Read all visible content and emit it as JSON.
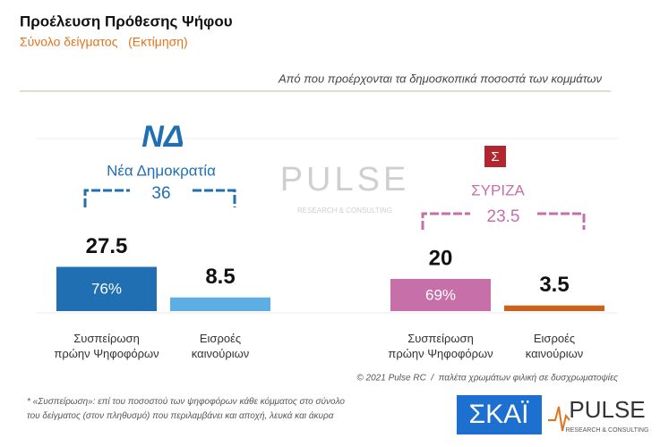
{
  "header": {
    "title": "Προέλευση Πρόθεσης Ψήφου",
    "subtitle": "Σύνολο δείγματος   (Εκτίμηση)",
    "question": "Από που προέρχονται τα δημοσκοπικά ποσοστά των κομμάτων"
  },
  "chart_data": [
    {
      "type": "bar",
      "title": "Νέα Δημοκρατία",
      "logo": "ΝΔ",
      "total": 36,
      "categories": [
        "Συσπείρωση\nπρώην Ψηφοφόρων",
        "Εισροές\nκαινούριων"
      ],
      "values": [
        27.5,
        8.5
      ],
      "colors": [
        "#1f6fb2",
        "#5eaee6"
      ],
      "inner_labels": [
        "76%"
      ],
      "color": "#1f6fb2"
    },
    {
      "type": "bar",
      "title": "ΣΥΡΙΖΑ",
      "logo": "Σ",
      "total": 23.5,
      "categories": [
        "Συσπείρωση\nπρώην Ψηφοφόρων",
        "Εισροές\nκαινούριων"
      ],
      "values": [
        20,
        3.5
      ],
      "colors": [
        "#c76fa8",
        "#c8621c"
      ],
      "inner_labels": [
        "69%"
      ],
      "color": "#c76fa8"
    }
  ],
  "watermark": {
    "name": "PULSE",
    "tagline": "RESEARCH & CONSULTING"
  },
  "footer": {
    "copyright": "© 2021 Pulse RC  /  παλέτα χρωμάτων φιλική σε δυσχρωματοψίες",
    "note": "*  «Συσπείρωση»: επί του ποσοστού των ψηφοφόρων κάθε κόμματος στο σύνολο\nτου δείγματος (στον πληθυσμό) που περιλαμβάνει και αποχή, λευκά και άκυρα",
    "broadcaster": "ΣΚΑΪ",
    "brand": "PULSE",
    "brand_tagline": "RESEARCH & CONSULTING"
  }
}
